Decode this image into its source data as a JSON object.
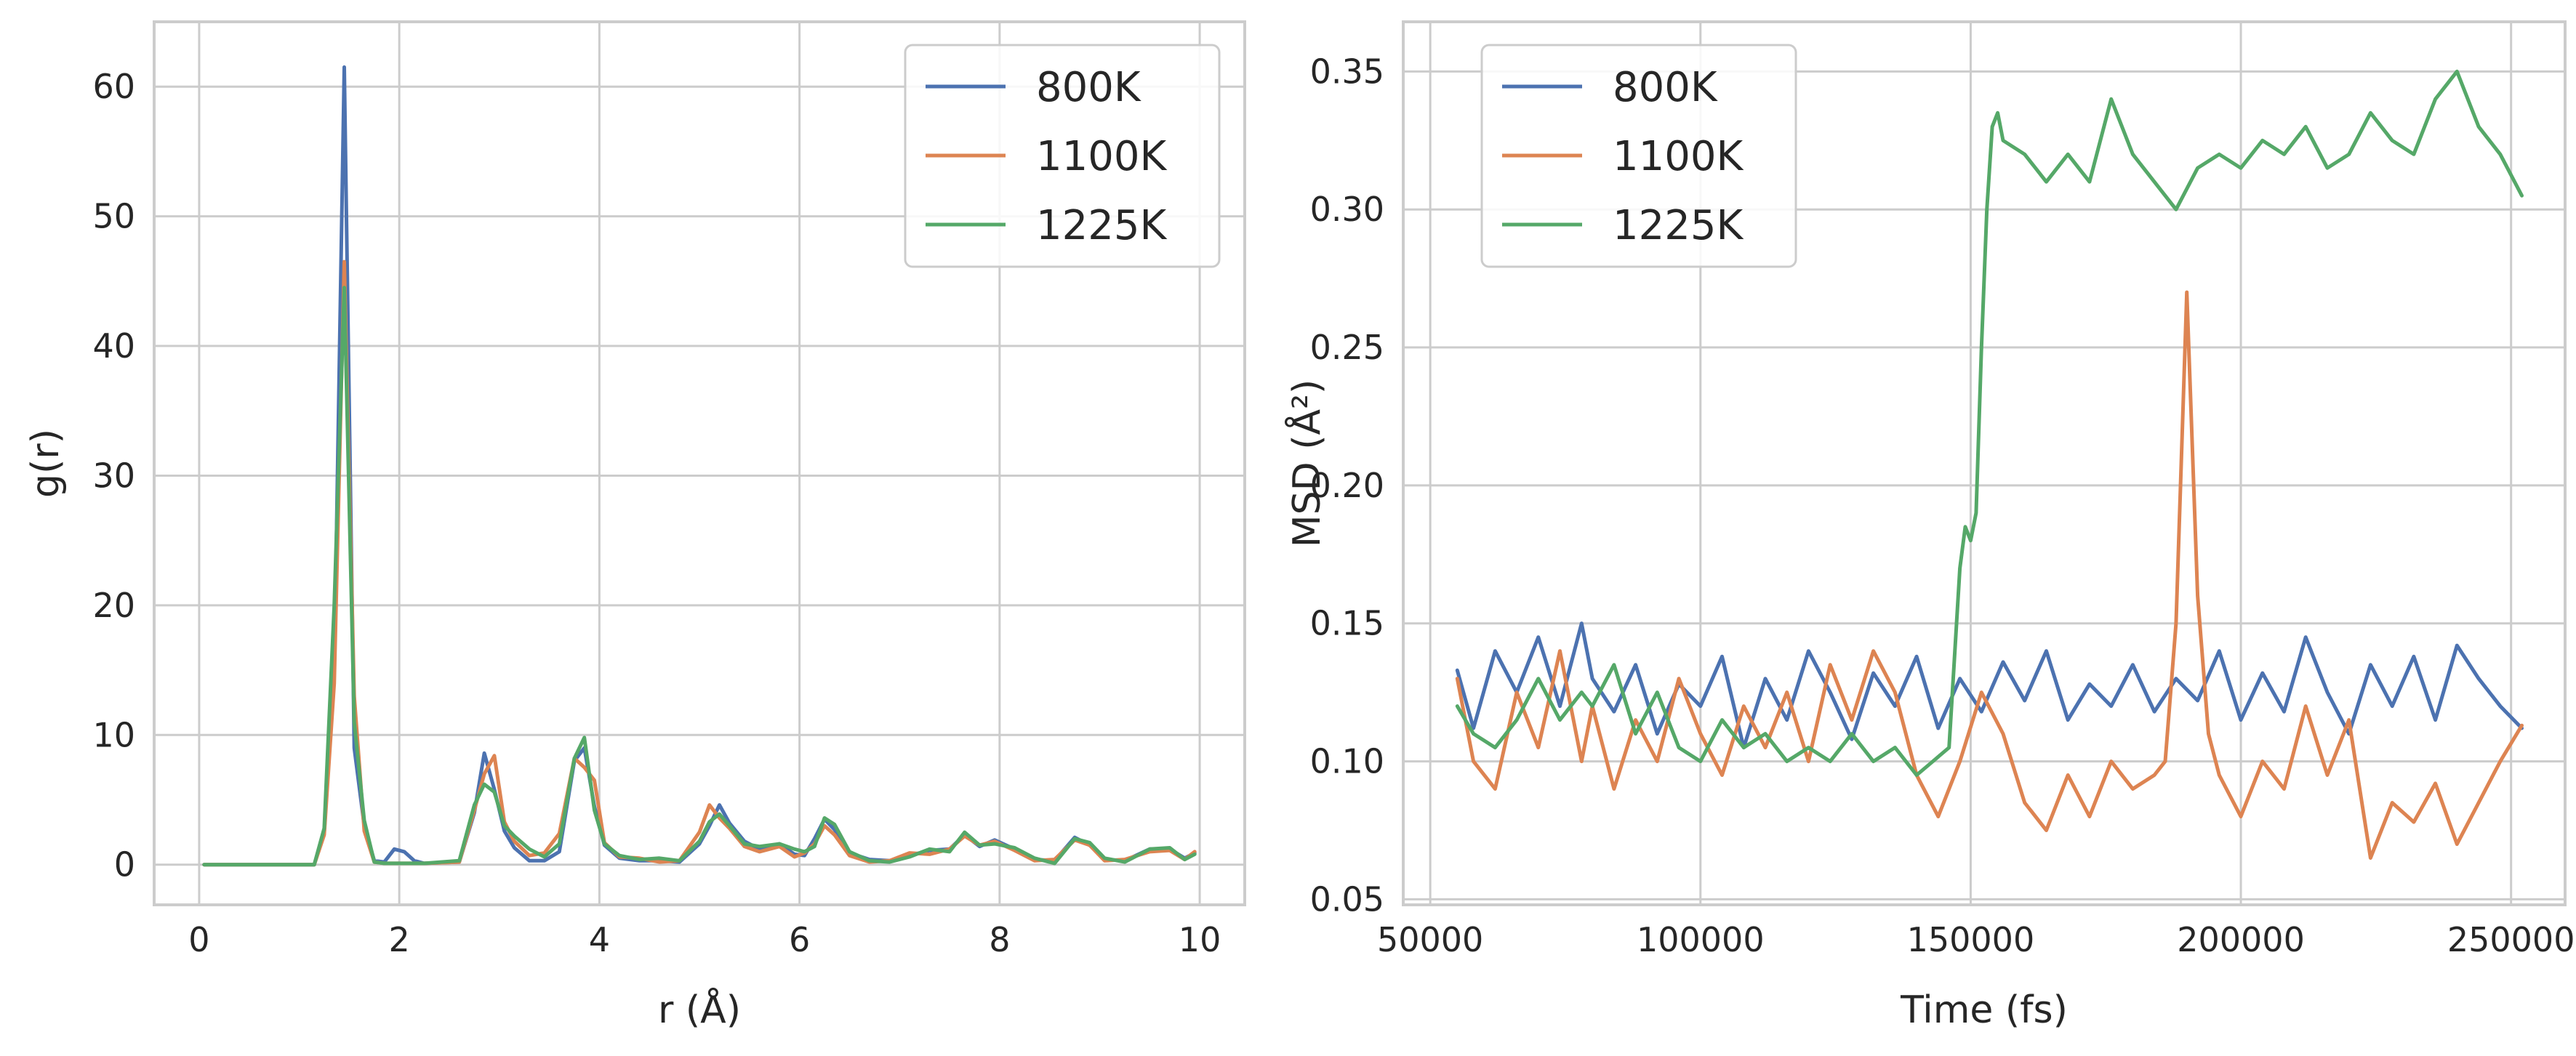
{
  "colors": {
    "s800": "#4c72b0",
    "s1100": "#dd8452",
    "s1225": "#55a868",
    "grid": "#cccccc",
    "frame": "#cccccc"
  },
  "chart_data": [
    {
      "type": "line",
      "xlabel": "r (Å)",
      "ylabel": "g(r)",
      "xlim": [
        -0.45,
        10.45
      ],
      "ylim": [
        -3.1,
        65
      ],
      "xticks": [
        0,
        2,
        4,
        6,
        8,
        10
      ],
      "yticks": [
        0,
        10,
        20,
        30,
        40,
        50,
        60
      ],
      "xtick_labels": [
        "0",
        "2",
        "4",
        "6",
        "8",
        "10"
      ],
      "ytick_labels": [
        "0",
        "10",
        "20",
        "30",
        "40",
        "50",
        "60"
      ],
      "grid": true,
      "legend": "top-right",
      "series": [
        {
          "name": "800K",
          "x": [
            0.05,
            1.15,
            1.25,
            1.35,
            1.45,
            1.55,
            1.65,
            1.75,
            1.85,
            1.95,
            2.05,
            2.15,
            2.25,
            2.6,
            2.75,
            2.85,
            2.95,
            3.05,
            3.15,
            3.3,
            3.45,
            3.6,
            3.75,
            3.85,
            3.95,
            4.05,
            4.2,
            4.4,
            4.6,
            4.8,
            5.0,
            5.1,
            5.2,
            5.3,
            5.45,
            5.6,
            5.8,
            5.95,
            6.05,
            6.15,
            6.25,
            6.35,
            6.5,
            6.7,
            6.9,
            7.1,
            7.3,
            7.5,
            7.65,
            7.8,
            7.95,
            8.15,
            8.35,
            8.55,
            8.75,
            8.9,
            9.05,
            9.25,
            9.5,
            9.7,
            9.85,
            9.95
          ],
          "values": [
            0,
            0,
            2.5,
            15,
            61.5,
            9,
            3,
            0.3,
            0.2,
            1.2,
            1.0,
            0.3,
            0.1,
            0.2,
            4.0,
            8.6,
            5.8,
            2.6,
            1.3,
            0.3,
            0.3,
            1.0,
            8.0,
            9.0,
            4.5,
            1.5,
            0.5,
            0.3,
            0.3,
            0.2,
            1.6,
            3.0,
            4.6,
            3.2,
            1.8,
            1.2,
            1.6,
            0.8,
            0.7,
            2.0,
            3.5,
            2.7,
            0.9,
            0.4,
            0.3,
            0.7,
            1.1,
            1.2,
            2.3,
            1.4,
            1.9,
            1.2,
            0.4,
            0.3,
            2.1,
            1.5,
            0.4,
            0.3,
            1.2,
            1.2,
            0.5,
            0.9
          ]
        },
        {
          "name": "1100K",
          "x": [
            0.05,
            1.15,
            1.25,
            1.35,
            1.45,
            1.55,
            1.65,
            1.75,
            1.85,
            1.95,
            2.05,
            2.15,
            2.25,
            2.6,
            2.75,
            2.85,
            2.95,
            3.05,
            3.15,
            3.3,
            3.45,
            3.6,
            3.75,
            3.85,
            3.95,
            4.05,
            4.2,
            4.4,
            4.6,
            4.8,
            5.0,
            5.1,
            5.2,
            5.3,
            5.45,
            5.6,
            5.8,
            5.95,
            6.05,
            6.15,
            6.25,
            6.35,
            6.5,
            6.7,
            6.9,
            7.1,
            7.3,
            7.5,
            7.65,
            7.8,
            7.95,
            8.15,
            8.35,
            8.55,
            8.75,
            8.9,
            9.05,
            9.25,
            9.5,
            9.7,
            9.85,
            9.95
          ],
          "values": [
            0,
            0,
            2.3,
            14,
            46.5,
            13,
            2.6,
            0.2,
            0.1,
            0.1,
            0.1,
            0.1,
            0.1,
            0.2,
            4.2,
            7.0,
            8.4,
            3.3,
            1.8,
            0.7,
            0.9,
            2.4,
            8.2,
            7.5,
            6.5,
            1.7,
            0.6,
            0.5,
            0.2,
            0.3,
            2.5,
            4.6,
            3.6,
            2.8,
            1.4,
            1.0,
            1.4,
            0.6,
            0.9,
            1.6,
            3.0,
            2.3,
            0.7,
            0.2,
            0.3,
            0.9,
            0.8,
            1.2,
            2.2,
            1.5,
            1.8,
            1.1,
            0.3,
            0.4,
            1.9,
            1.5,
            0.3,
            0.4,
            1.0,
            1.1,
            0.4,
            1.0
          ]
        },
        {
          "name": "1225K",
          "x": [
            0.05,
            1.15,
            1.25,
            1.35,
            1.45,
            1.55,
            1.65,
            1.75,
            1.85,
            1.95,
            2.05,
            2.15,
            2.25,
            2.6,
            2.75,
            2.85,
            2.95,
            3.05,
            3.15,
            3.3,
            3.45,
            3.6,
            3.75,
            3.85,
            3.95,
            4.05,
            4.2,
            4.4,
            4.6,
            4.8,
            5.0,
            5.1,
            5.2,
            5.3,
            5.45,
            5.6,
            5.8,
            5.95,
            6.05,
            6.15,
            6.25,
            6.35,
            6.5,
            6.7,
            6.9,
            7.1,
            7.3,
            7.5,
            7.65,
            7.8,
            7.95,
            8.15,
            8.35,
            8.55,
            8.75,
            8.9,
            9.05,
            9.25,
            9.5,
            9.7,
            9.85,
            9.95
          ],
          "values": [
            0,
            0,
            2.8,
            20,
            44.5,
            11,
            3.4,
            0.2,
            0.1,
            0.1,
            0.1,
            0.1,
            0.1,
            0.3,
            4.6,
            6.2,
            5.6,
            3.0,
            2.2,
            1.2,
            0.6,
            1.6,
            8.2,
            9.8,
            4.2,
            1.6,
            0.7,
            0.4,
            0.5,
            0.3,
            1.8,
            3.3,
            3.9,
            3.0,
            1.6,
            1.4,
            1.6,
            1.2,
            1.0,
            1.4,
            3.6,
            3.1,
            1.0,
            0.3,
            0.2,
            0.6,
            1.2,
            1.0,
            2.5,
            1.5,
            1.6,
            1.3,
            0.5,
            0.1,
            2.0,
            1.7,
            0.5,
            0.2,
            1.2,
            1.3,
            0.4,
            0.8
          ]
        }
      ]
    },
    {
      "type": "line",
      "xlabel": "Time (fs)",
      "ylabel": "MSD (Å²)",
      "xlim": [
        45000,
        260000
      ],
      "ylim": [
        0.048,
        0.368
      ],
      "xticks": [
        50000,
        100000,
        150000,
        200000,
        250000
      ],
      "yticks": [
        0.05,
        0.1,
        0.15,
        0.2,
        0.25,
        0.3,
        0.35
      ],
      "xtick_labels": [
        "50000",
        "100000",
        "150000",
        "200000",
        "250000"
      ],
      "ytick_labels": [
        "0.05",
        "0.10",
        "0.15",
        "0.20",
        "0.25",
        "0.30",
        "0.35"
      ],
      "grid": true,
      "legend": "top-left",
      "series": [
        {
          "name": "800K",
          "x": [
            55000,
            58000,
            62000,
            66000,
            70000,
            74000,
            78000,
            80000,
            84000,
            88000,
            92000,
            96000,
            100000,
            104000,
            108000,
            112000,
            116000,
            120000,
            124000,
            128000,
            132000,
            136000,
            140000,
            144000,
            148000,
            152000,
            156000,
            160000,
            164000,
            168000,
            172000,
            176000,
            180000,
            184000,
            188000,
            192000,
            196000,
            200000,
            204000,
            208000,
            212000,
            216000,
            220000,
            224000,
            228000,
            232000,
            236000,
            240000,
            244000,
            248000,
            252000
          ],
          "values": [
            0.133,
            0.112,
            0.14,
            0.125,
            0.145,
            0.12,
            0.15,
            0.13,
            0.118,
            0.135,
            0.11,
            0.128,
            0.12,
            0.138,
            0.105,
            0.13,
            0.115,
            0.14,
            0.125,
            0.108,
            0.132,
            0.12,
            0.138,
            0.112,
            0.13,
            0.118,
            0.136,
            0.122,
            0.14,
            0.115,
            0.128,
            0.12,
            0.135,
            0.118,
            0.13,
            0.122,
            0.14,
            0.115,
            0.132,
            0.118,
            0.145,
            0.125,
            0.11,
            0.135,
            0.12,
            0.138,
            0.115,
            0.142,
            0.13,
            0.12,
            0.112
          ]
        },
        {
          "name": "1100K",
          "x": [
            55000,
            58000,
            62000,
            66000,
            70000,
            74000,
            78000,
            80000,
            84000,
            88000,
            92000,
            96000,
            100000,
            104000,
            108000,
            112000,
            116000,
            120000,
            124000,
            128000,
            132000,
            136000,
            140000,
            144000,
            148000,
            152000,
            156000,
            160000,
            164000,
            168000,
            172000,
            176000,
            180000,
            184000,
            186000,
            188000,
            190000,
            192000,
            194000,
            196000,
            200000,
            204000,
            208000,
            212000,
            216000,
            220000,
            224000,
            228000,
            232000,
            236000,
            240000,
            244000,
            248000,
            252000
          ],
          "values": [
            0.13,
            0.1,
            0.09,
            0.125,
            0.105,
            0.14,
            0.1,
            0.12,
            0.09,
            0.115,
            0.1,
            0.13,
            0.11,
            0.095,
            0.12,
            0.105,
            0.125,
            0.1,
            0.135,
            0.115,
            0.14,
            0.125,
            0.095,
            0.08,
            0.1,
            0.125,
            0.11,
            0.085,
            0.075,
            0.095,
            0.08,
            0.1,
            0.09,
            0.095,
            0.1,
            0.15,
            0.27,
            0.16,
            0.11,
            0.095,
            0.08,
            0.1,
            0.09,
            0.12,
            0.095,
            0.115,
            0.065,
            0.085,
            0.078,
            0.092,
            0.07,
            0.085,
            0.1,
            0.113
          ]
        },
        {
          "name": "1225K",
          "x": [
            55000,
            58000,
            62000,
            66000,
            70000,
            74000,
            78000,
            80000,
            84000,
            88000,
            92000,
            96000,
            100000,
            104000,
            108000,
            112000,
            116000,
            120000,
            124000,
            128000,
            132000,
            136000,
            140000,
            143000,
            146000,
            148000,
            149000,
            150000,
            151000,
            152000,
            153000,
            154000,
            155000,
            156000,
            160000,
            164000,
            168000,
            172000,
            176000,
            180000,
            184000,
            188000,
            192000,
            196000,
            200000,
            204000,
            208000,
            212000,
            216000,
            220000,
            224000,
            228000,
            232000,
            236000,
            240000,
            244000,
            248000,
            252000
          ],
          "values": [
            0.12,
            0.11,
            0.105,
            0.115,
            0.13,
            0.115,
            0.125,
            0.12,
            0.135,
            0.11,
            0.125,
            0.105,
            0.1,
            0.115,
            0.105,
            0.11,
            0.1,
            0.105,
            0.1,
            0.11,
            0.1,
            0.105,
            0.095,
            0.1,
            0.105,
            0.17,
            0.185,
            0.18,
            0.19,
            0.25,
            0.3,
            0.33,
            0.335,
            0.325,
            0.32,
            0.31,
            0.32,
            0.31,
            0.34,
            0.32,
            0.31,
            0.3,
            0.315,
            0.32,
            0.315,
            0.325,
            0.32,
            0.33,
            0.315,
            0.32,
            0.335,
            0.325,
            0.32,
            0.34,
            0.35,
            0.33,
            0.32,
            0.305
          ]
        }
      ]
    }
  ]
}
